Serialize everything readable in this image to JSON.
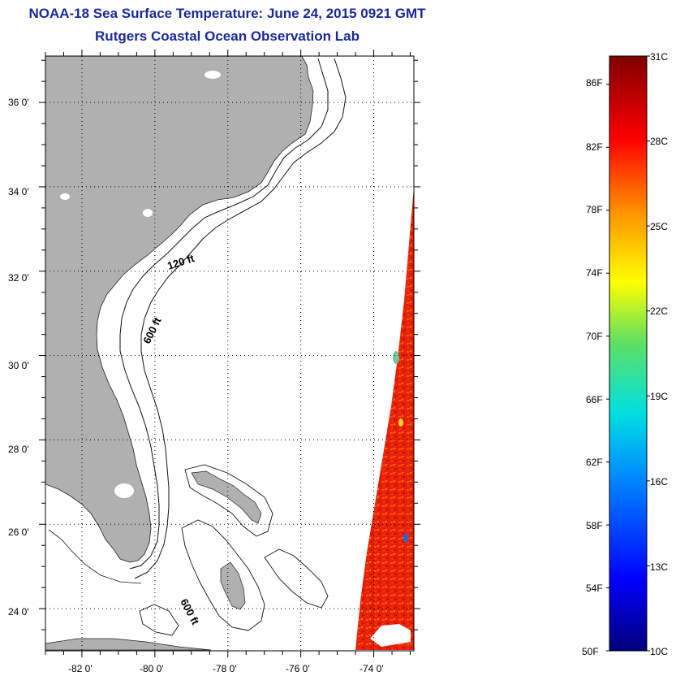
{
  "title_line1": "NOAA-18 Sea Surface Temperature:  June 24, 2015 0921 GMT",
  "title_line2": "Rutgers Coastal Ocean Observation Lab",
  "map": {
    "lat_ticks": [
      "36 0'",
      "34 0'",
      "32 0'",
      "30 0'",
      "28 0'",
      "26 0'",
      "24 0'"
    ],
    "lon_ticks": [
      "-82 0'",
      "-80 0'",
      "-78 0'",
      "-76 0'",
      "-74 0'"
    ],
    "lat_range": [
      23.0,
      37.1
    ],
    "lon_range": [
      -83.0,
      -72.9
    ],
    "contours": [
      "120 ft",
      "600 ft",
      "600 ft"
    ],
    "land_color": "#b0b0b0",
    "grid": "dotted"
  },
  "colorbar": {
    "fahrenheit_labels": [
      "86F",
      "82F",
      "78F",
      "74F",
      "70F",
      "66F",
      "62F",
      "58F",
      "54F",
      "50F"
    ],
    "celsius_labels": [
      "31C",
      "28C",
      "25C",
      "22C",
      "19C",
      "16C",
      "13C",
      "10C"
    ],
    "range_c": [
      10,
      31
    ]
  }
}
